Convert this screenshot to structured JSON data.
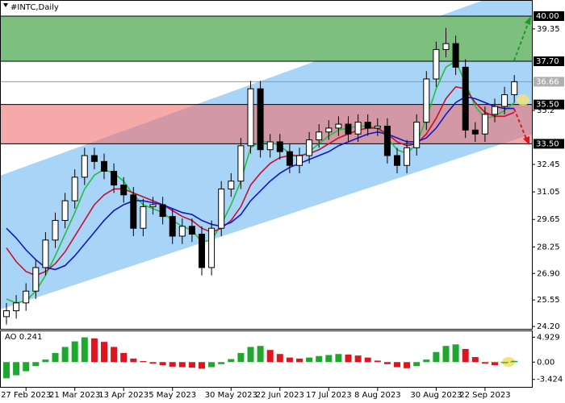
{
  "chart_data": {
    "type": "candlestick",
    "title": "#INTC,Daily",
    "categories": [
      null,
      null,
      "27 Feb 2023",
      null,
      null,
      null,
      null,
      "21 Mar 2023",
      null,
      null,
      null,
      null,
      "13 Apr 2023",
      null,
      null,
      null,
      null,
      "5 May 2023",
      null,
      null,
      null,
      null,
      null,
      "30 May 2023",
      null,
      null,
      null,
      null,
      "22 Jun 2023",
      null,
      null,
      null,
      null,
      "17 Jul 2023",
      null,
      null,
      null,
      null,
      "8 Aug 2023",
      null,
      null,
      null,
      null,
      null,
      "30 Aug 2023",
      null,
      null,
      null,
      null,
      "22 Sep 2023",
      null,
      null,
      null
    ],
    "open": [
      24.7,
      25.0,
      25.4,
      26.0,
      27.2,
      28.6,
      29.6,
      30.6,
      31.8,
      32.9,
      32.6,
      32.1,
      31.4,
      30.9,
      29.2,
      30.3,
      30.4,
      29.8,
      28.8,
      29.3,
      28.9,
      27.2,
      29.2,
      31.2,
      31.6,
      33.4,
      36.3,
      33.2,
      33.6,
      33.1,
      32.4,
      32.9,
      33.7,
      34.1,
      34.3,
      34.5,
      34.0,
      34.6,
      34.3,
      34.4,
      32.9,
      32.4,
      33.3,
      34.6,
      36.8,
      38.3,
      38.6,
      37.4,
      34.2,
      34.0,
      35.0,
      35.4,
      36.0
    ],
    "high": [
      25.4,
      25.8,
      26.4,
      27.6,
      29.0,
      30.0,
      31.0,
      32.2,
      33.3,
      33.3,
      33.0,
      32.5,
      31.8,
      31.3,
      30.7,
      30.8,
      30.8,
      30.2,
      29.7,
      29.7,
      29.3,
      29.6,
      31.6,
      32.0,
      33.8,
      36.7,
      36.7,
      34.0,
      34.0,
      33.5,
      33.3,
      34.1,
      34.5,
      34.7,
      34.9,
      34.9,
      35.0,
      35.0,
      34.8,
      34.8,
      33.3,
      33.7,
      35.0,
      37.2,
      38.7,
      39.4,
      39.0,
      37.8,
      34.6,
      35.4,
      35.8,
      36.4,
      37.0
    ],
    "low": [
      24.3,
      24.6,
      25.0,
      25.6,
      26.8,
      28.2,
      29.2,
      30.2,
      31.4,
      32.2,
      31.7,
      31.0,
      30.5,
      28.8,
      28.8,
      29.9,
      29.4,
      28.4,
      28.4,
      28.5,
      26.8,
      26.8,
      28.8,
      30.8,
      31.2,
      33.0,
      32.8,
      32.8,
      32.7,
      32.0,
      32.0,
      32.5,
      33.3,
      33.7,
      33.9,
      33.6,
      33.6,
      33.9,
      33.9,
      32.5,
      32.0,
      32.0,
      32.9,
      34.2,
      36.4,
      37.9,
      37.0,
      33.8,
      33.6,
      33.6,
      34.6,
      35.0,
      35.6
    ],
    "close": [
      25.0,
      25.4,
      26.0,
      27.2,
      28.6,
      29.6,
      30.6,
      31.8,
      32.9,
      32.6,
      32.1,
      31.4,
      30.9,
      29.2,
      30.3,
      30.4,
      29.8,
      28.8,
      29.3,
      28.9,
      27.2,
      29.2,
      31.2,
      31.6,
      33.4,
      36.3,
      33.2,
      33.6,
      33.1,
      32.4,
      32.9,
      33.7,
      34.1,
      34.3,
      34.5,
      34.0,
      34.6,
      34.3,
      34.4,
      32.9,
      32.4,
      33.3,
      34.6,
      36.8,
      38.3,
      38.6,
      37.4,
      34.2,
      34.0,
      35.0,
      35.4,
      36.0,
      36.66
    ],
    "series": [
      {
        "color": "#1fc23a",
        "values": [
          25.6,
          25.4,
          25.5,
          26.0,
          26.8,
          27.8,
          28.9,
          30.0,
          31.2,
          31.9,
          32.2,
          32.0,
          31.6,
          30.9,
          30.4,
          30.2,
          30.0,
          29.6,
          29.3,
          29.1,
          28.5,
          28.6,
          29.4,
          30.4,
          31.6,
          33.3,
          33.6,
          33.6,
          33.4,
          33.0,
          32.8,
          33.1,
          33.5,
          33.9,
          34.2,
          34.3,
          34.4,
          34.4,
          34.3,
          33.8,
          33.2,
          33.0,
          33.5,
          34.8,
          36.3,
          37.4,
          37.7,
          36.6,
          35.4,
          34.8,
          34.9,
          35.2,
          35.6
        ]
      },
      {
        "color": "#c8102e",
        "values": [
          28.2,
          27.5,
          27.0,
          26.8,
          27.0,
          27.4,
          28.0,
          28.8,
          29.6,
          30.4,
          30.9,
          31.2,
          31.2,
          31.0,
          30.8,
          30.6,
          30.4,
          30.1,
          29.8,
          29.6,
          29.2,
          29.0,
          29.2,
          29.6,
          30.3,
          31.4,
          32.0,
          32.5,
          32.8,
          32.9,
          32.9,
          33.0,
          33.2,
          33.5,
          33.8,
          34.0,
          34.2,
          34.3,
          34.3,
          34.0,
          33.6,
          33.4,
          33.5,
          34.0,
          34.8,
          35.8,
          36.4,
          36.3,
          35.6,
          35.1,
          34.9,
          34.9,
          35.1
        ]
      },
      {
        "color": "#1515c8",
        "values": [
          29.2,
          28.7,
          28.1,
          27.6,
          27.2,
          27.1,
          27.3,
          27.8,
          28.4,
          29.0,
          29.6,
          30.1,
          30.4,
          30.6,
          30.6,
          30.5,
          30.4,
          30.2,
          30.0,
          29.9,
          29.6,
          29.4,
          29.3,
          29.5,
          29.9,
          30.6,
          31.1,
          31.6,
          32.0,
          32.3,
          32.5,
          32.7,
          32.9,
          33.1,
          33.4,
          33.6,
          33.8,
          34.0,
          34.1,
          34.0,
          33.8,
          33.6,
          33.6,
          33.8,
          34.3,
          35.0,
          35.6,
          35.9,
          35.8,
          35.6,
          35.4,
          35.3,
          35.3
        ]
      }
    ],
    "ylim": [
      24.08,
      40.82
    ],
    "yticks": [
      39.35,
      35.2,
      32.45,
      31.05,
      29.65,
      28.25,
      {
        "value": 26.9,
        "label": "26.90"
      },
      25.55,
      {
        "value": 24.2,
        "label": "24.20"
      }
    ],
    "levels": [
      {
        "value": 40,
        "label": "40.00"
      },
      {
        "value": 37.7,
        "label": "37.70"
      },
      {
        "value": 36.66,
        "label": "36.66"
      },
      {
        "value": 35.5,
        "label": "35.50"
      },
      {
        "value": 33.5,
        "label": "33.50"
      }
    ],
    "zones": [
      {
        "from": 37.7,
        "to": 40,
        "color": "#7dbf7f"
      },
      {
        "from": 33.5,
        "to": 35.5,
        "color": "#f07070"
      }
    ],
    "indicator": {
      "label": "AO 0.241",
      "rising_color": "#1fa82e",
      "falling_color": "#e0141e",
      "values": [
        -3.2,
        -2.6,
        -1.8,
        -0.8,
        0.5,
        1.8,
        3.0,
        4.1,
        4.9,
        4.7,
        4.0,
        3.0,
        1.8,
        0.7,
        0.2,
        -0.3,
        -0.6,
        -0.9,
        -1.0,
        -1.1,
        -1.3,
        -1.0,
        -0.4,
        0.6,
        1.8,
        3.0,
        3.2,
        2.4,
        1.6,
        0.9,
        0.7,
        0.9,
        1.2,
        1.4,
        1.6,
        1.5,
        1.3,
        0.9,
        0.3,
        -0.4,
        -1.0,
        -1.2,
        -0.8,
        0.5,
        2.0,
        3.2,
        3.5,
        2.6,
        1.0,
        -0.3,
        -0.6,
        -0.2,
        0.241
      ],
      "ylim": [
        -4.9,
        6.1
      ],
      "yticks": [
        4.929,
        {
          "value": 0,
          "label": "0.00"
        },
        -3.424
      ]
    }
  }
}
